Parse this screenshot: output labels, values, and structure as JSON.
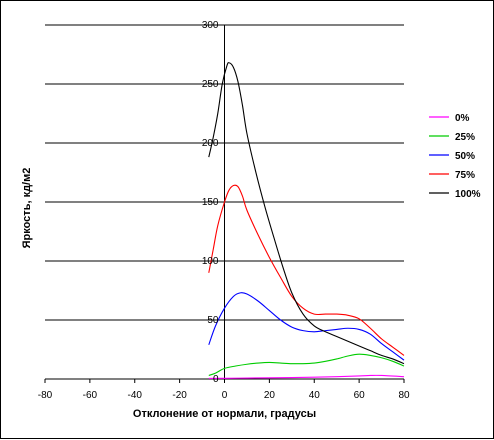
{
  "chart_data": {
    "type": "line",
    "title": "",
    "xlabel": "Отклонение от нормали, градусы",
    "ylabel": "Яркость, кд/м2",
    "xlim": [
      -80,
      80
    ],
    "ylim": [
      0,
      300
    ],
    "xticks": [
      -80,
      -60,
      -40,
      -20,
      0,
      20,
      40,
      60,
      80
    ],
    "yticks": [
      0,
      50,
      100,
      150,
      200,
      250,
      300
    ],
    "grid": "horizontal major gridlines",
    "legend_position": "right",
    "series": [
      {
        "name": "0%",
        "color": "#ff00ff",
        "x": [
          -7,
          0,
          10,
          20,
          30,
          40,
          50,
          60,
          65,
          70,
          80
        ],
        "y": [
          0.5,
          0.6,
          0.8,
          1,
          1.2,
          1.5,
          2,
          2.6,
          3,
          3,
          2
        ]
      },
      {
        "name": "25%",
        "color": "#00cc00",
        "x": [
          -7,
          -4,
          0,
          5,
          10,
          15,
          20,
          25,
          30,
          35,
          40,
          45,
          50,
          55,
          60,
          65,
          70,
          75,
          80
        ],
        "y": [
          3,
          5,
          9,
          11,
          12.5,
          13.5,
          14,
          13.5,
          13,
          13,
          13.5,
          15,
          17,
          19.5,
          21,
          20,
          18,
          15,
          11
        ]
      },
      {
        "name": "50%",
        "color": "#0000ff",
        "x": [
          -7,
          -4,
          0,
          4,
          7,
          10,
          15,
          20,
          25,
          30,
          35,
          40,
          45,
          50,
          55,
          60,
          65,
          70,
          75,
          80
        ],
        "y": [
          29,
          45,
          60,
          70,
          73,
          72,
          66,
          58,
          50,
          44,
          41,
          40,
          41,
          42,
          43,
          42,
          38,
          30,
          23,
          16
        ]
      },
      {
        "name": "75%",
        "color": "#ff0000",
        "x": [
          -7,
          -5,
          -3,
          0,
          2,
          4,
          6,
          8,
          10,
          15,
          20,
          25,
          30,
          35,
          40,
          45,
          50,
          55,
          60,
          65,
          70,
          75,
          80
        ],
        "y": [
          90,
          110,
          130,
          150,
          160,
          164,
          163,
          155,
          143,
          122,
          103,
          86,
          70,
          60,
          55,
          55,
          55,
          54,
          51,
          43,
          34,
          27,
          20
        ]
      },
      {
        "name": "100%",
        "color": "#000000",
        "x": [
          -7,
          -5,
          -3,
          -1,
          1,
          2,
          4,
          6,
          8,
          10,
          14,
          18,
          22,
          26,
          30,
          35,
          40,
          45,
          50,
          55,
          60,
          65,
          70,
          75,
          80
        ],
        "y": [
          188,
          205,
          225,
          250,
          265,
          268,
          264,
          252,
          232,
          208,
          175,
          146,
          120,
          95,
          73,
          55,
          45,
          40,
          36,
          32,
          28,
          24,
          20,
          17,
          13
        ]
      }
    ]
  }
}
